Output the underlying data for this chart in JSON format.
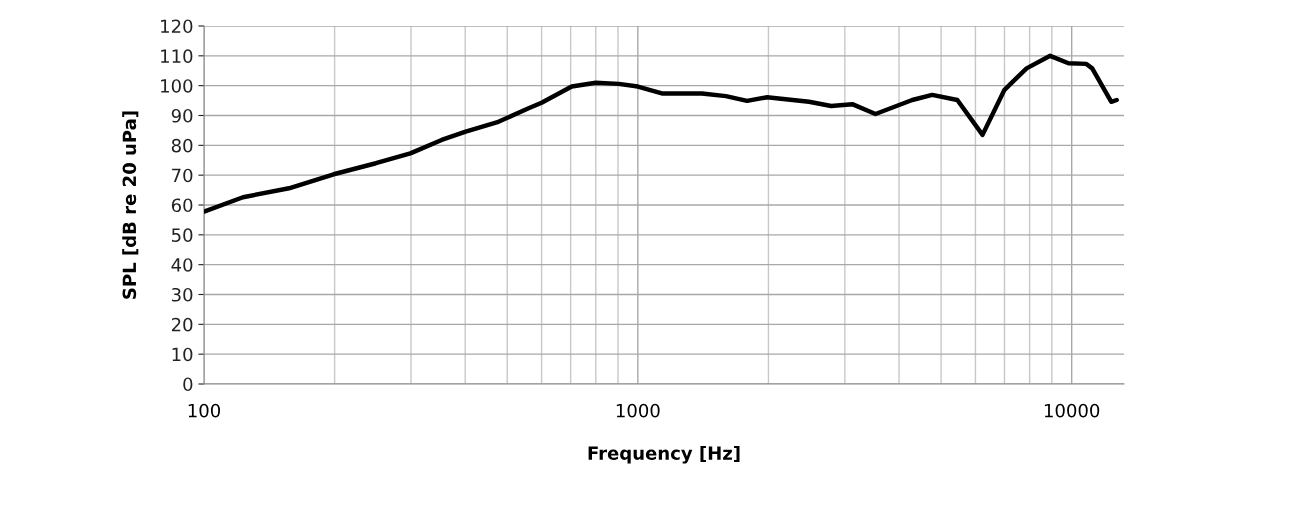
{
  "chart_data": {
    "type": "line",
    "xlabel": "Frequency [Hz]",
    "ylabel": "SPL [dB re 20 uPa]",
    "log": "x",
    "grid": true,
    "marker": "none",
    "line_style": "solid",
    "xlim": [
      100,
      13200
    ],
    "xticks": [
      100,
      1000,
      10000
    ],
    "ylim": [
      0,
      120
    ],
    "yticks": [
      0,
      10,
      20,
      30,
      40,
      50,
      60,
      70,
      80,
      90,
      100,
      110,
      120
    ],
    "series": [
      {
        "color": "#000000",
        "x": [
          100,
          123,
          157,
          199,
          249,
          299,
          353,
          401,
          477,
          560,
          600,
          704,
          800,
          904,
          1000,
          1136,
          1405,
          1596,
          1785,
          1985,
          2480,
          2790,
          3120,
          3530,
          4290,
          4770,
          5450,
          6230,
          7000,
          7870,
          8920,
          9830,
          10810,
          11150,
          12340,
          12700
        ],
        "values": [
          57.8,
          62.6,
          65.6,
          70.3,
          74.0,
          77.3,
          81.8,
          84.6,
          87.9,
          92.4,
          94.3,
          99.7,
          101.0,
          100.6,
          99.7,
          97.4,
          97.4,
          96.5,
          94.9,
          96.1,
          94.6,
          93.2,
          93.8,
          90.5,
          95.2,
          96.9,
          95.2,
          83.5,
          98.6,
          105.8,
          110.0,
          107.5,
          107.3,
          105.8,
          94.6,
          95.2
        ]
      }
    ]
  }
}
